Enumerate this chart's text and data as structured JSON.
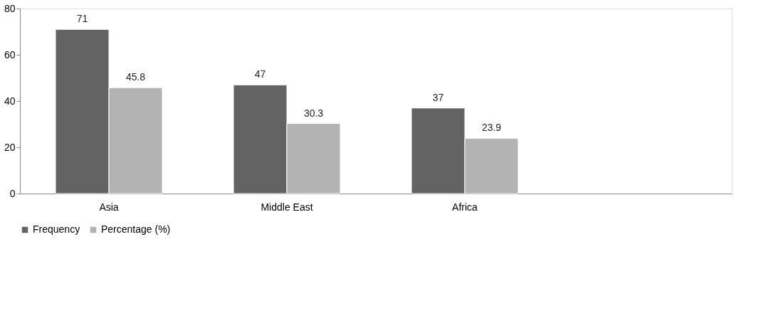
{
  "chart_data": {
    "type": "bar",
    "categories": [
      "Asia",
      "Middle East",
      "Africa",
      null
    ],
    "series": [
      {
        "name": "Frequency",
        "color": "#636363",
        "values": [
          71,
          47,
          37,
          null
        ]
      },
      {
        "name": "Percentage (%)",
        "color": "#b3b3b3",
        "values": [
          45.8,
          30.3,
          23.9,
          null
        ]
      }
    ],
    "ylim": [
      0,
      80
    ],
    "yticks": [
      0,
      20,
      40,
      60,
      80
    ],
    "grid": false,
    "legend": "bottom",
    "data_labels": true
  }
}
